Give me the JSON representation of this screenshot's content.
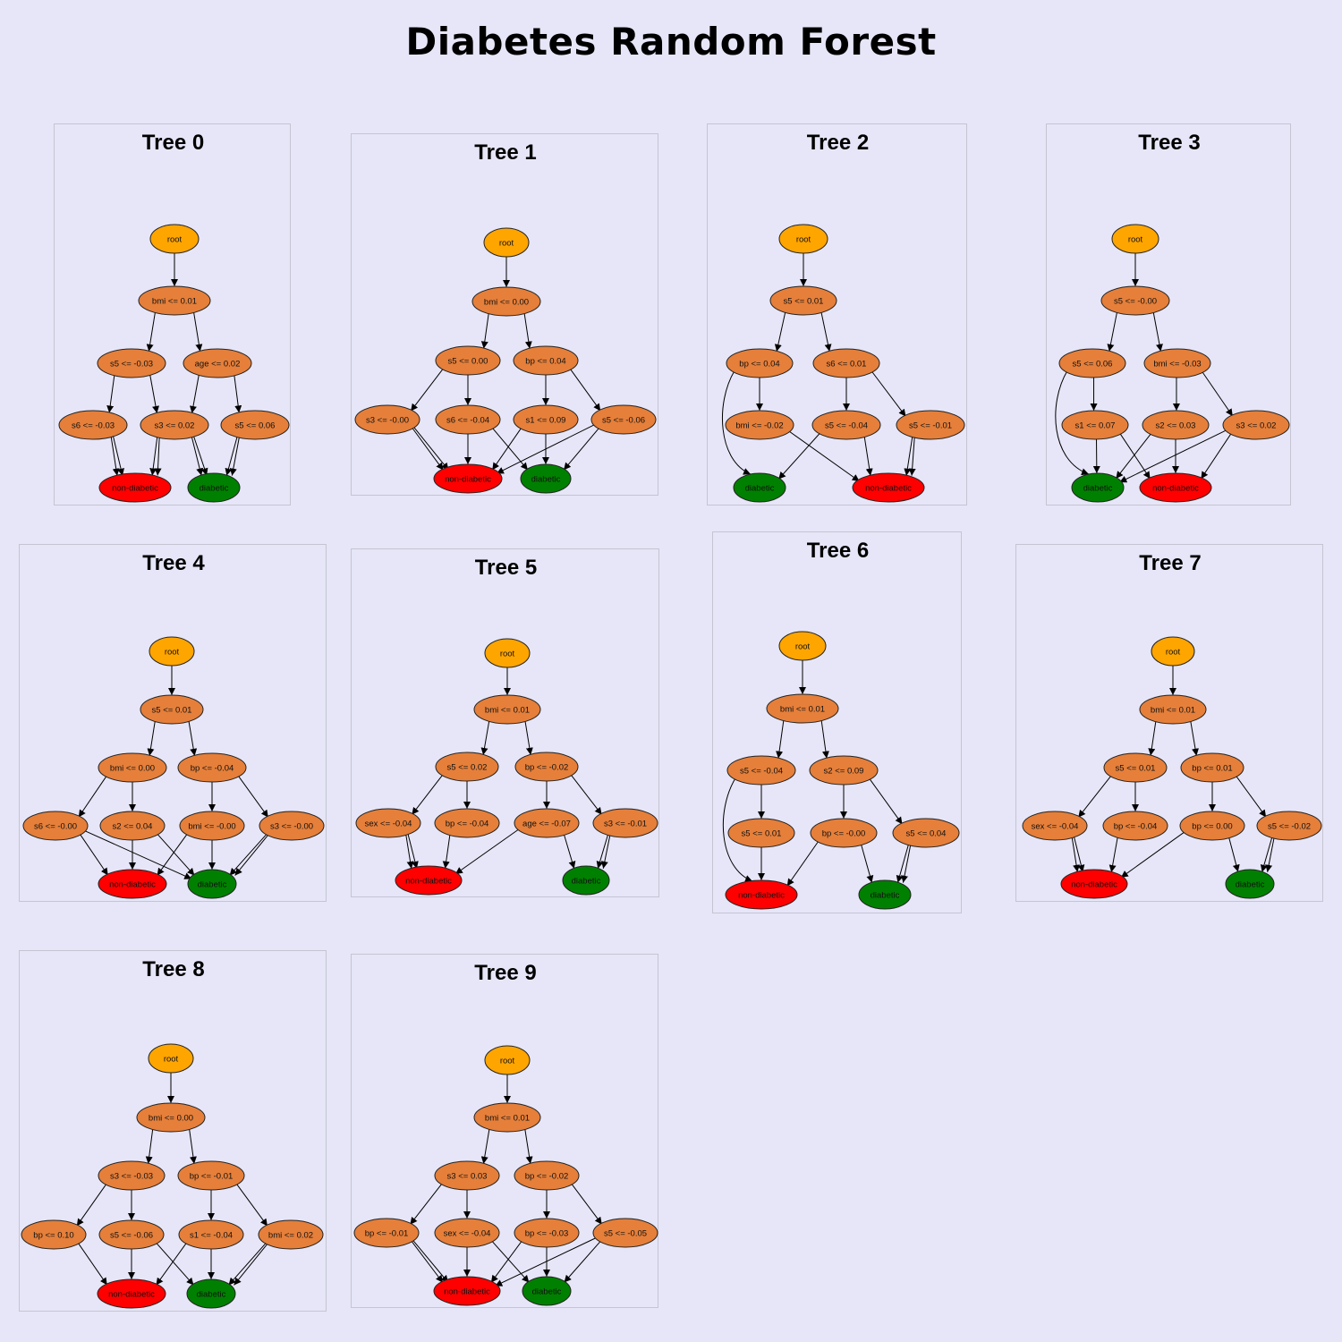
{
  "title": "Diabetes Random Forest",
  "colors": {
    "background": "#e6e6f8",
    "root": "#ffa500",
    "split": "#e57f3a",
    "non_diabetic": "#ff0000",
    "diabetic": "#008000",
    "edge": "#000000"
  },
  "leaf_labels": {
    "non_diabetic": "non-diabetic",
    "diabetic": "diabetic"
  },
  "trees": [
    {
      "name": "Tree 0",
      "root": "root",
      "level1": "bmi <= 0.01",
      "level2": [
        "s5 <= -0.03",
        "age <= 0.02"
      ],
      "level3": [
        "s6 <= -0.03",
        "s3 <= 0.02",
        "s5 <= 0.06"
      ],
      "leaf_order": [
        "non_diabetic",
        "diabetic"
      ]
    },
    {
      "name": "Tree 1",
      "root": "root",
      "level1": "bmi <= 0.00",
      "level2": [
        "s5 <= 0.00",
        "bp <= 0.04"
      ],
      "level3": [
        "s3 <= -0.00",
        "s6 <= -0.04",
        "s1 <= 0.09",
        "s5 <= -0.06"
      ],
      "leaf_order": [
        "non_diabetic",
        "diabetic"
      ]
    },
    {
      "name": "Tree 2",
      "root": "root",
      "level1": "s5 <= 0.01",
      "level2": [
        "bp <= 0.04",
        "s6 <= 0.01"
      ],
      "level3": [
        "bmi <= -0.02",
        "s5 <= -0.04",
        "s5 <= -0.01"
      ],
      "leaf_order": [
        "diabetic",
        "non_diabetic"
      ]
    },
    {
      "name": "Tree 3",
      "root": "root",
      "level1": "s5 <= -0.00",
      "level2": [
        "s5 <= 0.06",
        "bmi <= -0.03"
      ],
      "level3": [
        "s1 <= 0.07",
        "s2 <= 0.03",
        "s3 <= 0.02"
      ],
      "leaf_order": [
        "diabetic",
        "non_diabetic"
      ]
    },
    {
      "name": "Tree 4",
      "root": "root",
      "level1": "s5 <= 0.01",
      "level2": [
        "bmi <= 0.00",
        "bp <= -0.04"
      ],
      "level3": [
        "s6 <= -0.00",
        "s2 <= 0.04",
        "bmi <= -0.00",
        "s3 <= -0.00"
      ],
      "leaf_order": [
        "non_diabetic",
        "diabetic"
      ]
    },
    {
      "name": "Tree 5",
      "root": "root",
      "level1": "bmi <= 0.01",
      "level2": [
        "s5 <= 0.02",
        "bp <= -0.02"
      ],
      "level3": [
        "sex <= -0.04",
        "bp <= -0.04",
        "age <= -0.07",
        "s3 <= -0.01"
      ],
      "leaf_order": [
        "non_diabetic",
        "diabetic"
      ]
    },
    {
      "name": "Tree 6",
      "root": "root",
      "level1": "bmi <= 0.01",
      "level2": [
        "s5 <= -0.04",
        "s2 <= 0.09"
      ],
      "level3": [
        "s5 <= 0.01",
        "bp <= -0.00",
        "s5 <= 0.04"
      ],
      "leaf_order": [
        "non_diabetic",
        "diabetic"
      ]
    },
    {
      "name": "Tree 7",
      "root": "root",
      "level1": "bmi <= 0.01",
      "level2": [
        "s5 <= 0.01",
        "bp <= 0.01"
      ],
      "level3": [
        "sex <= -0.04",
        "bp <= -0.04",
        "bp <= 0.00",
        "s5 <= -0.02"
      ],
      "leaf_order": [
        "non_diabetic",
        "diabetic"
      ]
    },
    {
      "name": "Tree 8",
      "root": "root",
      "level1": "bmi <= 0.00",
      "level2": [
        "s3 <= -0.03",
        "bp <= -0.01"
      ],
      "level3": [
        "bp <= 0.10",
        "s5 <= -0.06",
        "s1 <= -0.04",
        "bmi <= 0.02"
      ],
      "leaf_order": [
        "non_diabetic",
        "diabetic"
      ]
    },
    {
      "name": "Tree 9",
      "root": "root",
      "level1": "bmi <= 0.01",
      "level2": [
        "s3 <= 0.03",
        "bp <= -0.02"
      ],
      "level3": [
        "bp <= -0.01",
        "sex <= -0.04",
        "bp <= -0.03",
        "s5 <= -0.05"
      ],
      "leaf_order": [
        "non_diabetic",
        "diabetic"
      ]
    }
  ]
}
